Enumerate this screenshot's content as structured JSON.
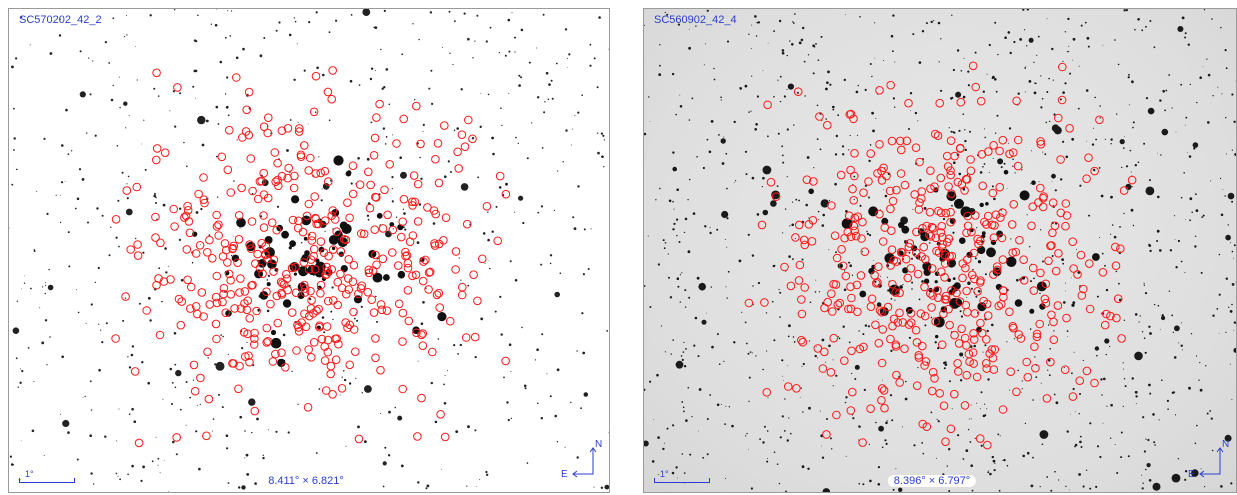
{
  "accent_color": "#2a3fd0",
  "marker_color": "#ff1a1a",
  "panels": [
    {
      "title": "SC570202_42_2",
      "scale_label": "1°",
      "fov_label": "8.411° × 6.821°",
      "compass": {
        "north": "N",
        "east": "E"
      },
      "marker_count": 420,
      "star_count": 640
    },
    {
      "title": "SC560902_42_4",
      "scale_label": "1°",
      "fov_label": "8.396° × 6.797°",
      "compass": {
        "north": "N",
        "east": "E"
      },
      "marker_count": 440,
      "star_count": 1100
    }
  ]
}
